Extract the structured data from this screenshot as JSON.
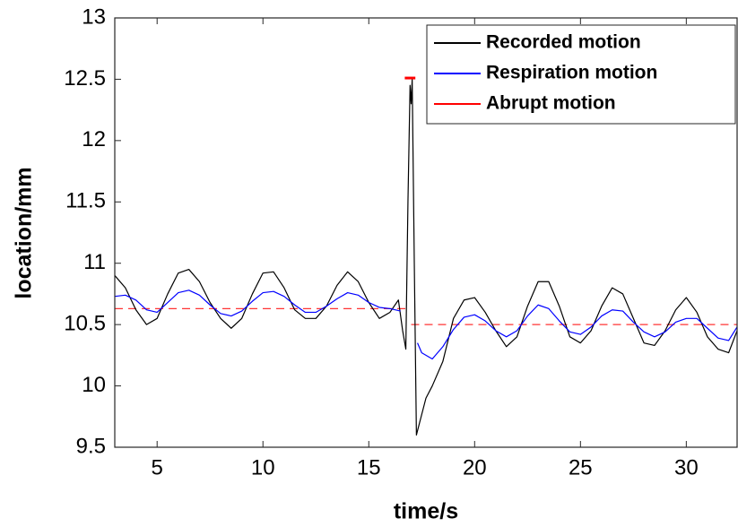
{
  "chart_data": {
    "type": "line",
    "xlabel": "time/s",
    "ylabel": "location/mm",
    "xlim": [
      3,
      32.4
    ],
    "ylim": [
      9.5,
      13
    ],
    "xticks": [
      5,
      10,
      15,
      20,
      25,
      30
    ],
    "yticks": [
      9.5,
      10,
      10.5,
      11,
      11.5,
      12,
      12.5,
      13
    ],
    "legend": "upper right",
    "series": [
      {
        "name": "Recorded motion",
        "color": "#000000",
        "x": [
          3,
          3.5,
          4,
          4.5,
          5,
          5.5,
          6,
          6.5,
          7,
          7.5,
          8,
          8.5,
          9,
          9.5,
          10,
          10.5,
          11,
          11.5,
          12,
          12.5,
          13,
          13.5,
          14,
          14.5,
          15,
          15.5,
          16,
          16.4,
          16.6,
          16.75,
          16.85,
          16.95,
          17.0,
          17.05,
          17.15,
          17.25,
          17.4,
          17.7,
          18,
          18.5,
          19,
          19.5,
          20,
          20.5,
          21,
          21.5,
          22,
          22.5,
          23,
          23.5,
          24,
          24.5,
          25,
          25.5,
          26,
          26.5,
          27,
          27.5,
          28,
          28.5,
          29,
          29.5,
          30,
          30.5,
          31,
          31.5,
          32,
          32.4
        ],
        "values": [
          10.9,
          10.8,
          10.62,
          10.5,
          10.55,
          10.75,
          10.92,
          10.95,
          10.85,
          10.68,
          10.55,
          10.47,
          10.55,
          10.75,
          10.92,
          10.93,
          10.8,
          10.62,
          10.55,
          10.55,
          10.65,
          10.82,
          10.93,
          10.85,
          10.68,
          10.55,
          10.6,
          10.7,
          10.45,
          10.3,
          11.5,
          12.45,
          12.3,
          12.5,
          11.0,
          9.6,
          9.7,
          9.9,
          10.0,
          10.2,
          10.55,
          10.7,
          10.72,
          10.6,
          10.45,
          10.32,
          10.4,
          10.65,
          10.85,
          10.85,
          10.65,
          10.4,
          10.35,
          10.45,
          10.65,
          10.8,
          10.75,
          10.55,
          10.35,
          10.33,
          10.45,
          10.62,
          10.72,
          10.6,
          10.4,
          10.3,
          10.27,
          10.45
        ]
      },
      {
        "name": "Respiration motion",
        "color": "#0000ff",
        "x": [
          3,
          3.5,
          4,
          4.5,
          5,
          5.5,
          6,
          6.5,
          7,
          7.5,
          8,
          8.5,
          9,
          9.5,
          10,
          10.5,
          11,
          11.5,
          12,
          12.5,
          13,
          13.5,
          14,
          14.5,
          15,
          15.5,
          16,
          16.5,
          17,
          17.3,
          17.5,
          18,
          18.5,
          19,
          19.5,
          20,
          20.5,
          21,
          21.5,
          22,
          22.5,
          23,
          23.5,
          24,
          24.5,
          25,
          25.5,
          26,
          26.5,
          27,
          27.5,
          28,
          28.5,
          29,
          29.5,
          30,
          30.5,
          31,
          31.5,
          32,
          32.4
        ],
        "values": [
          10.73,
          10.74,
          10.7,
          10.62,
          10.6,
          10.68,
          10.76,
          10.78,
          10.74,
          10.66,
          10.59,
          10.57,
          10.61,
          10.69,
          10.76,
          10.77,
          10.73,
          10.66,
          10.6,
          10.6,
          10.65,
          10.71,
          10.76,
          10.74,
          10.68,
          10.64,
          10.63,
          10.61,
          null,
          10.35,
          10.27,
          10.22,
          10.32,
          10.46,
          10.56,
          10.58,
          10.53,
          10.45,
          10.4,
          10.45,
          10.57,
          10.66,
          10.63,
          10.53,
          10.44,
          10.42,
          10.48,
          10.57,
          10.62,
          10.61,
          10.52,
          10.44,
          10.4,
          10.44,
          10.52,
          10.55,
          10.55,
          10.47,
          10.39,
          10.37,
          10.48
        ]
      },
      {
        "name": "Abrupt motion",
        "color": "#ff0000",
        "x": [
          16.7,
          17.2
        ],
        "values": [
          12.51,
          12.51
        ]
      }
    ],
    "reference_lines": [
      {
        "color": "#ff3333",
        "x": [
          3,
          16.8
        ],
        "values": [
          10.63,
          10.63
        ]
      },
      {
        "color": "#ff3333",
        "x": [
          17,
          32.4
        ],
        "values": [
          10.5,
          10.5
        ]
      }
    ]
  }
}
